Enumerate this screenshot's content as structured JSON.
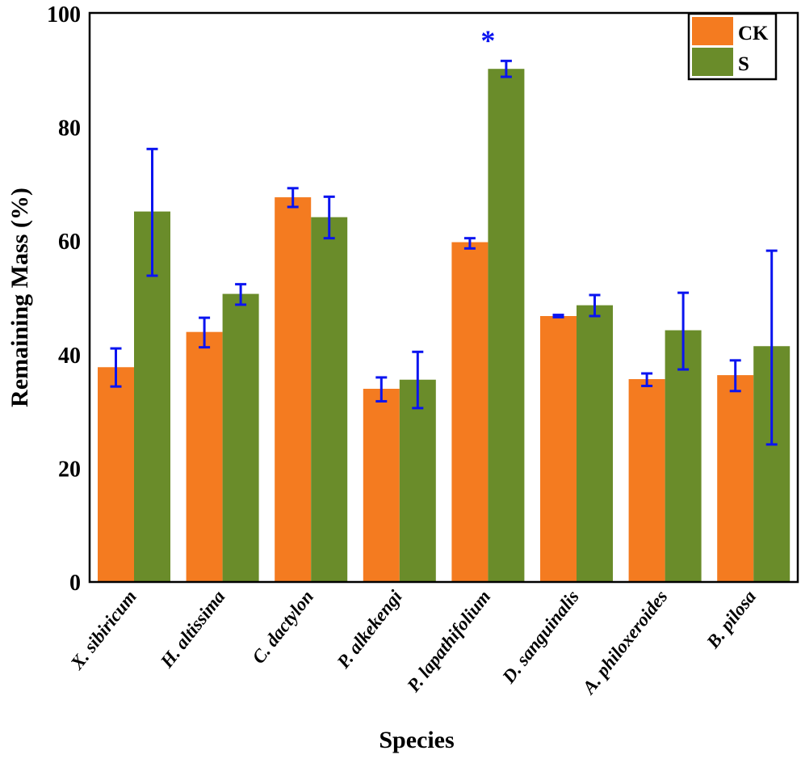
{
  "chart_data": {
    "type": "bar",
    "title": "",
    "xlabel": "Species",
    "ylabel": "Remaining Mass (%)",
    "ylim": [
      0,
      100
    ],
    "yticks": [
      0,
      20,
      40,
      60,
      80,
      100
    ],
    "grid": false,
    "legend_position": "top-right",
    "categories": [
      "X. sibiricum",
      "H. altissima",
      "C. dactylon",
      "P. alkekengi",
      "P. lapathifolium",
      "D. sanguinalis",
      "A. philoxeroides",
      "B. pilosa"
    ],
    "series": [
      {
        "name": "CK",
        "color": "#f47b20",
        "values": [
          37.8,
          44.0,
          67.7,
          34.0,
          59.8,
          46.8,
          35.7,
          36.4
        ],
        "err_low": [
          34.4,
          41.3,
          66.0,
          31.8,
          58.7,
          46.6,
          34.5,
          33.6
        ],
        "err_high": [
          41.1,
          46.5,
          69.3,
          36.0,
          60.5,
          47.0,
          36.7,
          39.0
        ]
      },
      {
        "name": "S",
        "color": "#6a8c2a",
        "values": [
          65.2,
          50.7,
          64.2,
          35.6,
          90.3,
          48.7,
          44.3,
          41.5
        ],
        "err_low": [
          53.9,
          48.8,
          60.5,
          30.6,
          88.9,
          46.8,
          37.4,
          24.2
        ],
        "err_high": [
          76.2,
          52.4,
          67.8,
          40.5,
          91.7,
          50.5,
          50.9,
          58.3
        ]
      }
    ],
    "error_bar_color": "#0a14f0",
    "annotations": [
      {
        "category": "P. lapathifolium",
        "text": "*"
      }
    ]
  }
}
